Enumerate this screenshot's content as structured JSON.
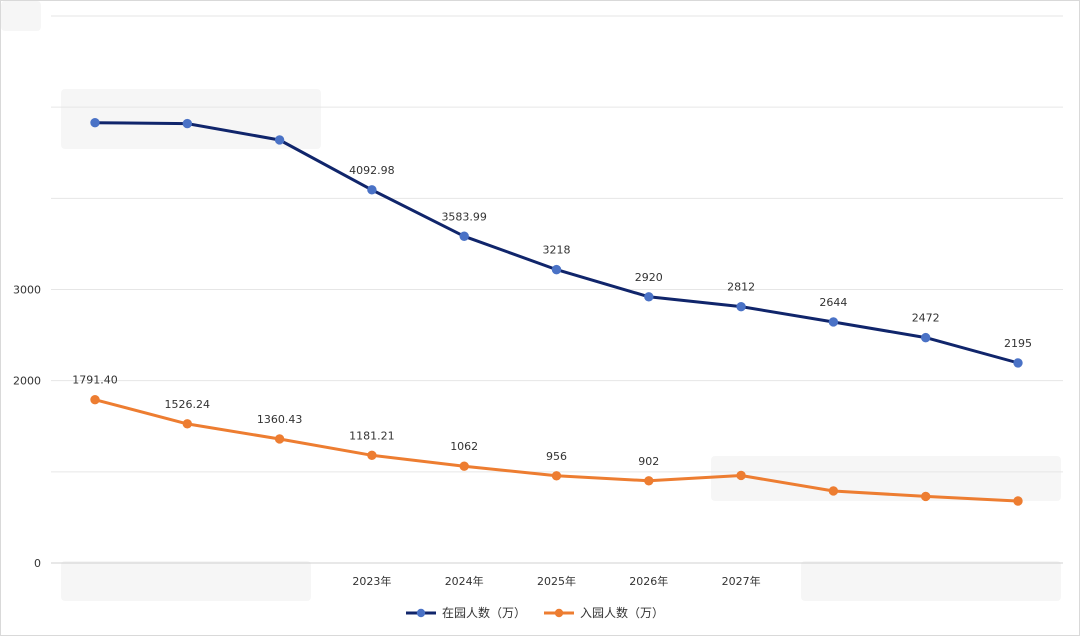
{
  "chart_data": {
    "type": "line",
    "categories": [
      "",
      "",
      "",
      "2023年",
      "2024年",
      "2025年",
      "2026年",
      "2027年",
      "",
      "",
      ""
    ],
    "series": [
      {
        "name": "在园人数（万）",
        "color": "#10256b",
        "marker_color": "#4a72c6",
        "values": [
          4830,
          4820,
          4640,
          4092.98,
          3583.99,
          3218,
          2920,
          2812,
          2644,
          2472,
          2195
        ],
        "labels": [
          "",
          "",
          "",
          "4092.98",
          "3583.99",
          "3218",
          "2920",
          "2812",
          "2644",
          "2472",
          "2195"
        ]
      },
      {
        "name": "入园人数（万）",
        "color": "#ed7d31",
        "marker_color": "#ed7d31",
        "values": [
          1791.4,
          1526.24,
          1360.43,
          1181.21,
          1062,
          956,
          902,
          960,
          790,
          730,
          680
        ],
        "labels": [
          "1791.40",
          "1526.24",
          "1360.43",
          "1181.21",
          "1062",
          "956",
          "902",
          "",
          "",
          "",
          ""
        ]
      }
    ],
    "y_ticks": [
      "0",
      "",
      "2000",
      "3000",
      "",
      "",
      ""
    ],
    "y_tick_values": [
      0,
      1000,
      2000,
      3000,
      4000,
      5000,
      6000
    ],
    "ylim": [
      0,
      6000
    ],
    "grid": true,
    "legend_position": "bottom"
  }
}
